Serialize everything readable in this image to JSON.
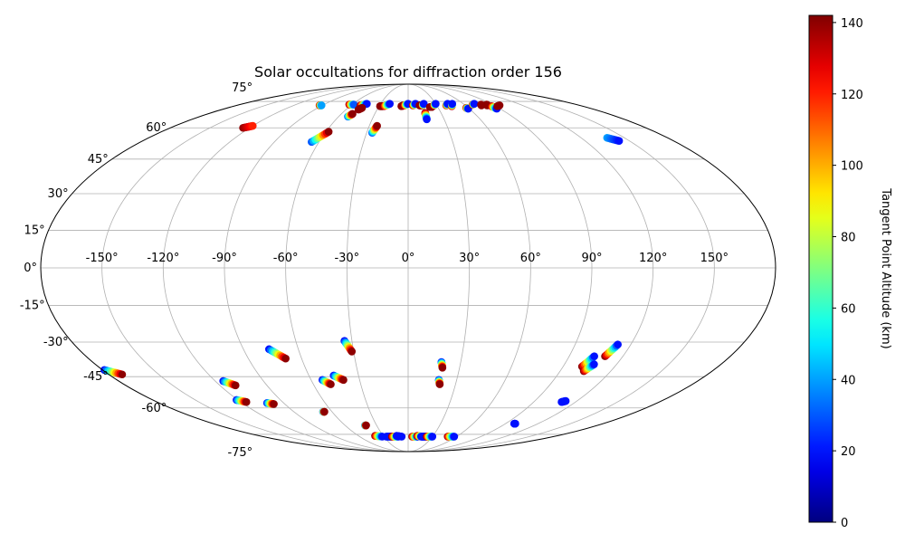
{
  "chart_data": {
    "type": "scatter",
    "projection": "mollweide",
    "title": "Solar occultations for diffraction order 156",
    "xlabel": "",
    "ylabel": "",
    "grid": true,
    "xlim": [
      -180,
      180
    ],
    "ylim": [
      -90,
      90
    ],
    "lon_ticks": [
      {
        "value": -150,
        "label": "-150°"
      },
      {
        "value": -120,
        "label": "-120°"
      },
      {
        "value": -90,
        "label": "-90°"
      },
      {
        "value": -60,
        "label": "-60°"
      },
      {
        "value": -30,
        "label": "-30°"
      },
      {
        "value": 0,
        "label": "0°"
      },
      {
        "value": 30,
        "label": "30°"
      },
      {
        "value": 60,
        "label": "60°"
      },
      {
        "value": 90,
        "label": "90°"
      },
      {
        "value": 120,
        "label": "120°"
      },
      {
        "value": 150,
        "label": "150°"
      }
    ],
    "lat_ticks": [
      {
        "value": 75,
        "label": "75°"
      },
      {
        "value": 60,
        "label": "60°"
      },
      {
        "value": 45,
        "label": "45°"
      },
      {
        "value": 30,
        "label": "30°"
      },
      {
        "value": 15,
        "label": "15°"
      },
      {
        "value": 0,
        "label": "0°"
      },
      {
        "value": -15,
        "label": "-15°"
      },
      {
        "value": -30,
        "label": "-30°"
      },
      {
        "value": -45,
        "label": "-45°"
      },
      {
        "value": -60,
        "label": "-60°"
      },
      {
        "value": -75,
        "label": "-75°"
      }
    ],
    "colorbar": {
      "label": "Tangent Point Altitude (km)",
      "colormap": "jet",
      "range": [
        0,
        142
      ],
      "ticks": [
        {
          "value": 0,
          "label": "0"
        },
        {
          "value": 20,
          "label": "20"
        },
        {
          "value": 40,
          "label": "40"
        },
        {
          "value": 60,
          "label": "60"
        },
        {
          "value": 80,
          "label": "80"
        },
        {
          "value": 100,
          "label": "100"
        },
        {
          "value": 120,
          "label": "120"
        },
        {
          "value": 140,
          "label": "140"
        }
      ]
    },
    "tracks": [
      {
        "lon_start": -93,
        "lat_start": 72.5,
        "lon_end": -91,
        "lat_end": 72.5,
        "alt_start": 140,
        "alt_end": 40
      },
      {
        "lon_start": -125,
        "lat_start": 60,
        "lon_end": -120,
        "lat_end": 61,
        "alt_start": 140,
        "alt_end": 120
      },
      {
        "lon_start": -63,
        "lat_start": 73,
        "lon_end": -58,
        "lat_end": 73,
        "alt_start": 140,
        "alt_end": 30
      },
      {
        "lon_start": -50,
        "lat_start": 72.5,
        "lon_end": -45,
        "lat_end": 73.5,
        "alt_start": 140,
        "alt_end": 20
      },
      {
        "lon_start": -48,
        "lat_start": 70,
        "lon_end": -46,
        "lat_end": 71,
        "alt_start": 140,
        "alt_end": 140
      },
      {
        "lon_start": -52,
        "lat_start": 66,
        "lon_end": -50,
        "lat_end": 67.5,
        "alt_start": 30,
        "alt_end": 140
      },
      {
        "lon_start": -65,
        "lat_start": 53,
        "lon_end": -58,
        "lat_end": 58,
        "alt_start": 30,
        "alt_end": 140
      },
      {
        "lon_start": -29,
        "lat_start": 72,
        "lon_end": -26,
        "lat_end": 72,
        "alt_start": 140,
        "alt_end": 140
      },
      {
        "lon_start": -25,
        "lat_start": 72,
        "lon_end": -20,
        "lat_end": 73.5,
        "alt_start": 140,
        "alt_end": 20
      },
      {
        "lon_start": -26,
        "lat_start": 57.5,
        "lon_end": -24,
        "lat_end": 61,
        "alt_start": 30,
        "alt_end": 140
      },
      {
        "lon_start": -7,
        "lat_start": 72,
        "lon_end": -5,
        "lat_end": 72.5,
        "alt_start": 140,
        "alt_end": 140
      },
      {
        "lon_start": -4,
        "lat_start": 72.5,
        "lon_end": 0,
        "lat_end": 73.5,
        "alt_start": 140,
        "alt_end": 20
      },
      {
        "lon_start": 5,
        "lat_start": 72.5,
        "lon_end": 8,
        "lat_end": 73.5,
        "alt_start": 140,
        "alt_end": 20
      },
      {
        "lon_start": 12,
        "lat_start": 72.5,
        "lon_end": 14,
        "lat_end": 72.5,
        "alt_start": 140,
        "alt_end": 140
      },
      {
        "lon_start": 15,
        "lat_start": 72.5,
        "lon_end": 17,
        "lat_end": 73.5,
        "alt_start": 140,
        "alt_end": 20
      },
      {
        "lon_start": 15.5,
        "lat_start": 68,
        "lon_end": 15.5,
        "lat_end": 64.5,
        "alt_start": 140,
        "alt_end": 20
      },
      {
        "lon_start": 22,
        "lat_start": 71.5,
        "lon_end": 24,
        "lat_end": 71.5,
        "alt_start": 140,
        "alt_end": 140
      },
      {
        "lon_start": 27,
        "lat_start": 72.5,
        "lon_end": 30,
        "lat_end": 73.5,
        "alt_start": 140,
        "alt_end": 20
      },
      {
        "lon_start": 40,
        "lat_start": 72.5,
        "lon_end": 43,
        "lat_end": 73.5,
        "alt_start": 140,
        "alt_end": 20
      },
      {
        "lon_start": 45,
        "lat_start": 72,
        "lon_end": 48,
        "lat_end": 73.5,
        "alt_start": 140,
        "alt_end": 20
      },
      {
        "lon_start": 58,
        "lat_start": 71,
        "lon_end": 59,
        "lat_end": 70.5,
        "alt_start": 140,
        "alt_end": 20
      },
      {
        "lon_start": 69,
        "lat_start": 73,
        "lon_end": 72,
        "lat_end": 73.5,
        "alt_start": 140,
        "alt_end": 20
      },
      {
        "lon_start": 77,
        "lat_start": 72.5,
        "lon_end": 78,
        "lat_end": 73,
        "alt_start": 140,
        "alt_end": 140
      },
      {
        "lon_start": 83,
        "lat_start": 72.5,
        "lon_end": 84,
        "lat_end": 73,
        "alt_start": 140,
        "alt_end": 140
      },
      {
        "lon_start": 86,
        "lat_start": 72,
        "lon_end": 87,
        "lat_end": 70.5,
        "alt_start": 140,
        "alt_end": 20
      },
      {
        "lon_start": 92,
        "lat_start": 72,
        "lon_end": 96,
        "lat_end": 72.5,
        "alt_start": 140,
        "alt_end": 140
      },
      {
        "lon_start": 138,
        "lat_start": 55,
        "lon_end": 143,
        "lat_end": 53.5,
        "alt_start": 40,
        "alt_end": 20
      },
      {
        "lon_start": -179,
        "lat_start": -42,
        "lon_end": -172,
        "lat_end": -44,
        "alt_start": 20,
        "alt_end": 140
      },
      {
        "lon_start": -115,
        "lat_start": -47,
        "lon_end": -110,
        "lat_end": -49,
        "alt_start": 20,
        "alt_end": 140
      },
      {
        "lon_start": -121,
        "lat_start": -56,
        "lon_end": -116,
        "lat_end": -57,
        "alt_start": 20,
        "alt_end": 140
      },
      {
        "lon_start": -102,
        "lat_start": -57.5,
        "lon_end": -98,
        "lat_end": -58,
        "alt_start": 20,
        "alt_end": 140
      },
      {
        "lon_start": -76,
        "lat_start": -33,
        "lon_end": -69,
        "lat_end": -37,
        "alt_start": 20,
        "alt_end": 140
      },
      {
        "lon_start": -67,
        "lat_start": -62,
        "lon_end": -66,
        "lat_end": -62,
        "alt_start": 20,
        "alt_end": 140
      },
      {
        "lon_start": -53,
        "lat_start": -46.5,
        "lon_end": -49,
        "lat_end": -48.5,
        "alt_start": 20,
        "alt_end": 140
      },
      {
        "lon_start": -45,
        "lat_start": -44.5,
        "lon_end": -40,
        "lat_end": -46.5,
        "alt_start": 20,
        "alt_end": 140
      },
      {
        "lon_start": -41,
        "lat_start": -69.5,
        "lon_end": -40,
        "lat_end": -69.5,
        "alt_start": 20,
        "alt_end": 140
      },
      {
        "lon_start": -34,
        "lat_start": -29.5,
        "lon_end": -31,
        "lat_end": -34,
        "alt_start": 20,
        "alt_end": 140
      },
      {
        "lon_start": 19,
        "lat_start": -38.5,
        "lon_end": 20,
        "lat_end": -41,
        "alt_start": 20,
        "alt_end": 140
      },
      {
        "lon_start": 19,
        "lat_start": -46.5,
        "lon_end": 20,
        "lat_end": -48.5,
        "alt_start": 20,
        "alt_end": 140
      },
      {
        "lon_start": 101,
        "lat_start": -40.5,
        "lon_end": 104,
        "lat_end": -36,
        "alt_start": 140,
        "alt_end": 20
      },
      {
        "lon_start": 104,
        "lat_start": -42.5,
        "lon_end": 107,
        "lat_end": -39.5,
        "alt_start": 140,
        "alt_end": 20
      },
      {
        "lon_start": 110,
        "lat_start": -36,
        "lon_end": 113,
        "lat_end": -31,
        "alt_start": 140,
        "alt_end": 20
      },
      {
        "lon_start": 110,
        "lat_start": -57,
        "lon_end": 112,
        "lat_end": -56.5,
        "alt_start": 20,
        "alt_end": 20
      },
      {
        "lon_start": 98,
        "lat_start": -68.5,
        "lon_end": 99,
        "lat_end": -68.5,
        "alt_start": 20,
        "alt_end": 20
      },
      {
        "lon_start": -40,
        "lat_start": -76,
        "lon_end": -32,
        "lat_end": -76.5,
        "alt_start": 140,
        "alt_end": 20
      },
      {
        "lon_start": -27,
        "lat_start": -76.5,
        "lon_end": -20,
        "lat_end": -76.5,
        "alt_start": 20,
        "alt_end": 20
      },
      {
        "lon_start": -20,
        "lat_start": -76.5,
        "lon_end": -12,
        "lat_end": -76.5,
        "alt_start": 140,
        "alt_end": 20
      },
      {
        "lon_start": -14,
        "lat_start": -76,
        "lon_end": -8,
        "lat_end": -76.5,
        "alt_start": 20,
        "alt_end": 20
      },
      {
        "lon_start": 5,
        "lat_start": -76.5,
        "lon_end": 12,
        "lat_end": -76.5,
        "alt_start": 140,
        "alt_end": 20
      },
      {
        "lon_start": 11,
        "lat_start": -76,
        "lon_end": 18,
        "lat_end": -76.5,
        "alt_start": 140,
        "alt_end": 20
      },
      {
        "lon_start": 16,
        "lat_start": -76.5,
        "lon_end": 22,
        "lat_end": -76.5,
        "alt_start": 20,
        "alt_end": 20
      },
      {
        "lon_start": 23,
        "lat_start": -76.5,
        "lon_end": 30,
        "lat_end": -76.5,
        "alt_start": 140,
        "alt_end": 20
      },
      {
        "lon_start": 49,
        "lat_start": -76.5,
        "lon_end": 57,
        "lat_end": -76.5,
        "alt_start": 140,
        "alt_end": 20
      }
    ]
  }
}
